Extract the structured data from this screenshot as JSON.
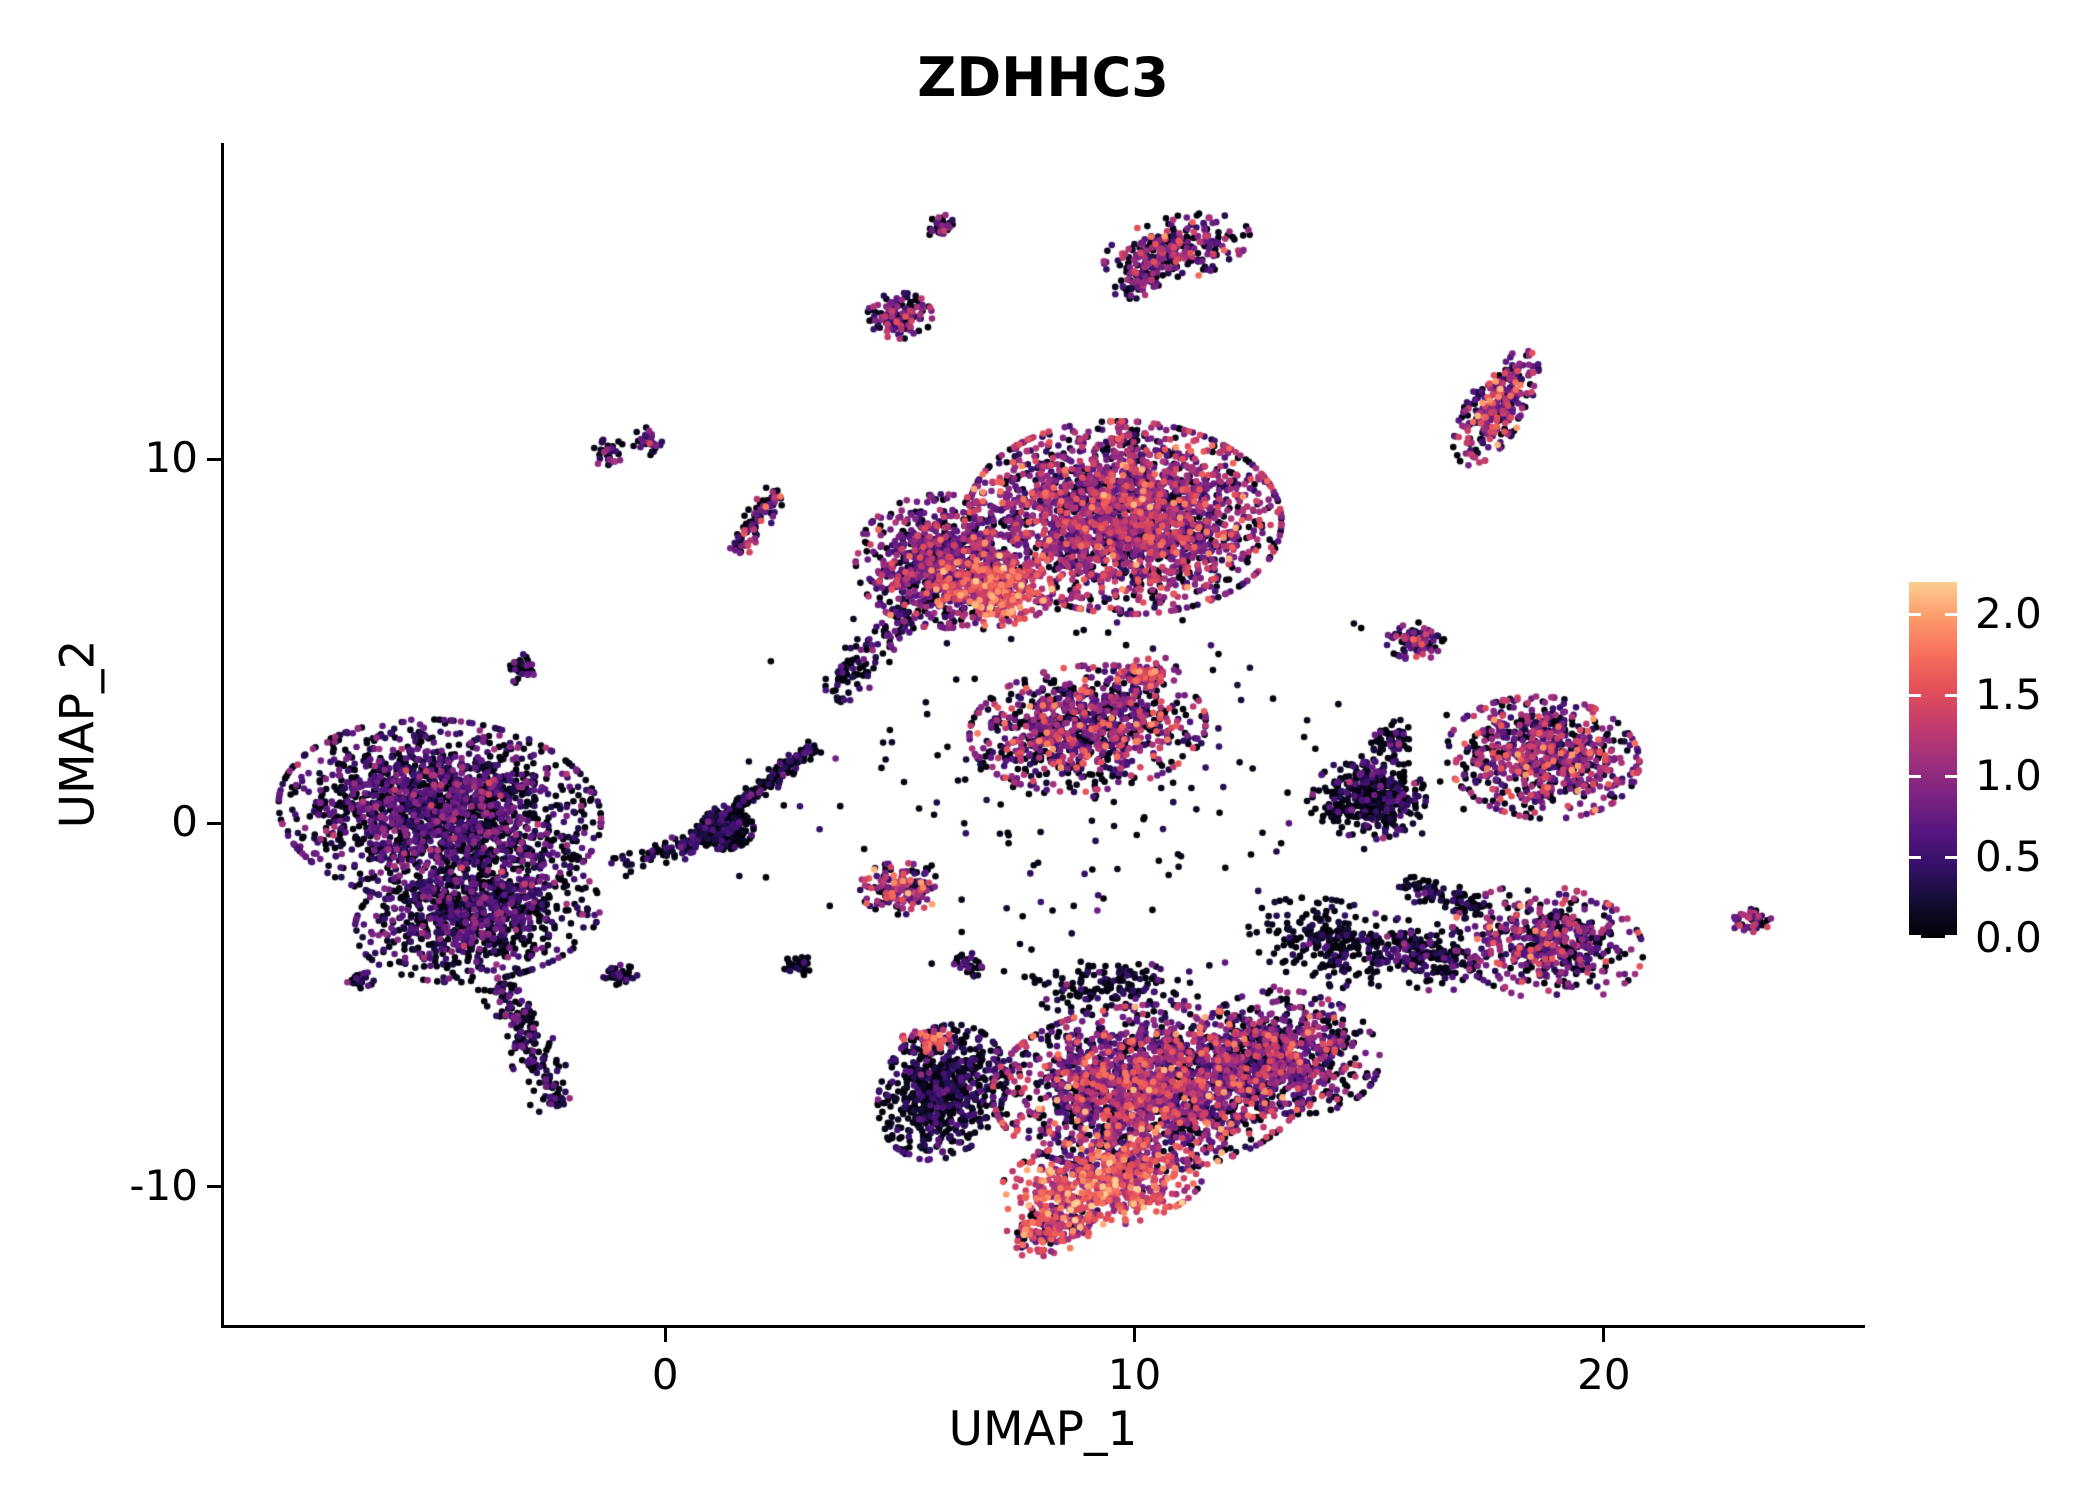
{
  "title": "ZDHHC3",
  "colors": {
    "background": "#ffffff",
    "text": "#000000",
    "axis": "#000000",
    "colorbar_tick": "#ffffff"
  },
  "chart_data": {
    "type": "scatter",
    "title": "ZDHHC3",
    "xlabel": "UMAP_1",
    "ylabel": "UMAP_2",
    "xlim": [
      -9.4,
      25.5
    ],
    "ylim": [
      -13.8,
      18.7
    ],
    "grid": false,
    "x_ticks": [
      {
        "value": 0,
        "label": "0"
      },
      {
        "value": 10,
        "label": "10"
      },
      {
        "value": 20,
        "label": "20"
      }
    ],
    "y_ticks": [
      {
        "value": -10,
        "label": "-10"
      },
      {
        "value": 0,
        "label": "0"
      },
      {
        "value": 10,
        "label": "10"
      }
    ],
    "legend": {
      "position": "right",
      "vmin": 0.0,
      "vmax": 2.2,
      "ticks": [
        {
          "value": 2.0,
          "label": "2.0"
        },
        {
          "value": 1.5,
          "label": "1.5"
        },
        {
          "value": 1.0,
          "label": "1.0"
        },
        {
          "value": 0.5,
          "label": "0.5"
        },
        {
          "value": 0.0,
          "label": "0.0"
        }
      ]
    },
    "colormap": {
      "name": "magma",
      "stops": [
        [
          0.0,
          "#000004"
        ],
        [
          0.1,
          "#120d32"
        ],
        [
          0.2,
          "#331068"
        ],
        [
          0.3,
          "#571680"
        ],
        [
          0.4,
          "#7b2382"
        ],
        [
          0.5,
          "#a0307c"
        ],
        [
          0.6,
          "#c43c6c"
        ],
        [
          0.7,
          "#e44f58"
        ],
        [
          0.8,
          "#f7705c"
        ],
        [
          0.9,
          "#fd9a6a"
        ],
        [
          1.0,
          "#fdce91"
        ]
      ]
    },
    "point_radius_px": 3.3,
    "clusters": [
      {
        "name": "left-upper",
        "cx": -4.8,
        "cy": 0.3,
        "rx": 3.0,
        "ry": 2.2,
        "rot": -8,
        "n": 2000,
        "zero_frac": 0.4,
        "mean": 0.55,
        "sd": 0.32,
        "max": 1.7
      },
      {
        "name": "left-lower",
        "cx": -4.0,
        "cy": -2.6,
        "rx": 2.3,
        "ry": 1.5,
        "rot": 12,
        "n": 900,
        "zero_frac": 0.42,
        "mean": 0.5,
        "sd": 0.3,
        "max": 1.6
      },
      {
        "name": "left-tail",
        "cx": -2.9,
        "cy": -6.1,
        "rx": 1.8,
        "ry": 0.45,
        "rot": -70,
        "n": 200,
        "zero_frac": 0.45,
        "mean": 0.45,
        "sd": 0.3,
        "max": 1.4,
        "uniform": true
      },
      {
        "name": "left-dot",
        "cx": -6.5,
        "cy": -4.3,
        "rx": 0.28,
        "ry": 0.22,
        "rot": 0,
        "n": 25,
        "zero_frac": 0.5,
        "mean": 0.4,
        "sd": 0.25,
        "max": 1.0
      },
      {
        "name": "left-bridge",
        "cx": -0.3,
        "cy": -0.9,
        "rx": 0.9,
        "ry": 0.28,
        "rot": 20,
        "n": 60,
        "zero_frac": 0.6,
        "mean": 0.3,
        "sd": 0.2,
        "max": 0.9,
        "uniform": true
      },
      {
        "name": "dot-left-low",
        "cx": -1.0,
        "cy": -4.2,
        "rx": 0.35,
        "ry": 0.28,
        "rot": 0,
        "n": 40,
        "zero_frac": 0.5,
        "mean": 0.4,
        "sd": 0.25,
        "max": 1.1
      },
      {
        "name": "islet-left-mid",
        "cx": -3.1,
        "cy": 4.25,
        "rx": 0.3,
        "ry": 0.35,
        "rot": 0,
        "n": 30,
        "zero_frac": 0.45,
        "mean": 0.5,
        "sd": 0.3,
        "max": 1.2
      },
      {
        "name": "islet-topleft-a",
        "cx": -1.2,
        "cy": 10.2,
        "rx": 0.28,
        "ry": 0.4,
        "rot": 0,
        "n": 30,
        "zero_frac": 0.35,
        "mean": 0.6,
        "sd": 0.35,
        "max": 1.5
      },
      {
        "name": "islet-topleft-b",
        "cx": -0.35,
        "cy": 10.5,
        "rx": 0.3,
        "ry": 0.33,
        "rot": 0,
        "n": 35,
        "zero_frac": 0.35,
        "mean": 0.6,
        "sd": 0.35,
        "max": 1.5
      },
      {
        "name": "streak-upper-left",
        "cx": 1.95,
        "cy": 8.3,
        "rx": 0.95,
        "ry": 0.25,
        "rot": 63,
        "n": 90,
        "zero_frac": 0.3,
        "mean": 0.7,
        "sd": 0.45,
        "max": 1.8,
        "uniform": true
      },
      {
        "name": "diag-line",
        "cx": 1.8,
        "cy": 0.7,
        "rx": 2.0,
        "ry": 0.2,
        "rot": 46,
        "n": 260,
        "zero_frac": 0.55,
        "mean": 0.35,
        "sd": 0.25,
        "max": 1.2,
        "uniform": true
      },
      {
        "name": "line-knot",
        "cx": 1.25,
        "cy": -0.15,
        "rx": 0.55,
        "ry": 0.5,
        "rot": 0,
        "n": 300,
        "zero_frac": 0.6,
        "mean": 0.3,
        "sd": 0.2,
        "max": 1.0
      },
      {
        "name": "bridge-to-top",
        "cx": 4.3,
        "cy": 4.6,
        "rx": 1.5,
        "ry": 0.45,
        "rot": 58,
        "n": 110,
        "zero_frac": 0.55,
        "mean": 0.35,
        "sd": 0.3,
        "max": 1.2,
        "uniform": true
      },
      {
        "name": "dot-below-line",
        "cx": 2.85,
        "cy": -3.9,
        "rx": 0.3,
        "ry": 0.25,
        "rot": 0,
        "n": 28,
        "zero_frac": 0.6,
        "mean": 0.3,
        "sd": 0.2,
        "max": 0.9
      },
      {
        "name": "top-main",
        "cx": 9.8,
        "cy": 8.4,
        "rx": 2.9,
        "ry": 2.3,
        "rot": -5,
        "n": 2600,
        "zero_frac": 0.18,
        "mean": 0.95,
        "sd": 0.42,
        "max": 2.1
      },
      {
        "name": "top-left-lobe",
        "cx": 5.9,
        "cy": 7.2,
        "rx": 1.6,
        "ry": 1.6,
        "rot": 0,
        "n": 900,
        "zero_frac": 0.25,
        "mean": 0.8,
        "sd": 0.4,
        "max": 1.9
      },
      {
        "name": "top-hot-pocket",
        "cx": 7.0,
        "cy": 6.4,
        "rx": 1.1,
        "ry": 0.85,
        "rot": 0,
        "n": 380,
        "zero_frac": 0.08,
        "mean": 1.45,
        "sd": 0.33,
        "max": 2.2
      },
      {
        "name": "apex-main",
        "cx": 10.9,
        "cy": 15.8,
        "rx": 1.4,
        "ry": 0.75,
        "rot": 18,
        "n": 280,
        "zero_frac": 0.3,
        "mean": 0.85,
        "sd": 0.45,
        "max": 2.0
      },
      {
        "name": "apex-tail",
        "cx": 10.1,
        "cy": 14.9,
        "rx": 0.6,
        "ry": 0.33,
        "rot": 40,
        "n": 70,
        "zero_frac": 0.35,
        "mean": 0.7,
        "sd": 0.4,
        "max": 1.6
      },
      {
        "name": "apex-dot",
        "cx": 5.9,
        "cy": 16.4,
        "rx": 0.3,
        "ry": 0.33,
        "rot": 0,
        "n": 35,
        "zero_frac": 0.3,
        "mean": 0.7,
        "sd": 0.4,
        "max": 1.6
      },
      {
        "name": "upper-round",
        "cx": 5.0,
        "cy": 13.95,
        "rx": 0.6,
        "ry": 0.55,
        "rot": 0,
        "n": 140,
        "zero_frac": 0.3,
        "mean": 0.75,
        "sd": 0.4,
        "max": 1.7
      },
      {
        "name": "mid-cluster",
        "cx": 9.0,
        "cy": 2.6,
        "rx": 2.2,
        "ry": 1.5,
        "rot": 8,
        "n": 950,
        "zero_frac": 0.28,
        "mean": 0.85,
        "sd": 0.45,
        "max": 2.0
      },
      {
        "name": "mid-hot",
        "cx": 10.3,
        "cy": 4.1,
        "rx": 0.6,
        "ry": 0.4,
        "rot": 20,
        "n": 90,
        "zero_frac": 0.1,
        "mean": 1.3,
        "sd": 0.35,
        "max": 2.0
      },
      {
        "name": "islet-hot",
        "cx": 5.0,
        "cy": -1.8,
        "rx": 0.75,
        "ry": 0.62,
        "rot": 0,
        "n": 160,
        "zero_frac": 0.18,
        "mean": 1.0,
        "sd": 0.5,
        "max": 2.1
      },
      {
        "name": "islet-dark",
        "cx": 6.5,
        "cy": -3.9,
        "rx": 0.3,
        "ry": 0.28,
        "rot": 0,
        "n": 35,
        "zero_frac": 0.5,
        "mean": 0.4,
        "sd": 0.3,
        "max": 1.2
      },
      {
        "name": "bottom-left-dark",
        "cx": 5.9,
        "cy": -7.4,
        "rx": 1.15,
        "ry": 1.65,
        "rot": -15,
        "n": 700,
        "zero_frac": 0.55,
        "mean": 0.35,
        "sd": 0.25,
        "max": 1.3
      },
      {
        "name": "bottom-left-hot",
        "cx": 5.6,
        "cy": -6.0,
        "rx": 0.5,
        "ry": 0.33,
        "rot": 0,
        "n": 70,
        "zero_frac": 0.12,
        "mean": 1.25,
        "sd": 0.4,
        "max": 2.1
      },
      {
        "name": "bottom-main",
        "cx": 10.3,
        "cy": -7.3,
        "rx": 2.9,
        "ry": 2.0,
        "rot": 5,
        "n": 2200,
        "zero_frac": 0.22,
        "mean": 0.9,
        "sd": 0.45,
        "max": 2.1
      },
      {
        "name": "bottom-hot",
        "cx": 9.3,
        "cy": -9.9,
        "rx": 1.9,
        "ry": 1.05,
        "rot": 10,
        "n": 600,
        "zero_frac": 0.08,
        "mean": 1.4,
        "sd": 0.4,
        "max": 2.2
      },
      {
        "name": "bottom-tip",
        "cx": 8.2,
        "cy": -11.2,
        "rx": 0.9,
        "ry": 0.55,
        "rot": 25,
        "n": 150,
        "zero_frac": 0.1,
        "mean": 1.2,
        "sd": 0.45,
        "max": 2.1
      },
      {
        "name": "bottom-right",
        "cx": 13.3,
        "cy": -6.3,
        "rx": 1.7,
        "ry": 1.45,
        "rot": -20,
        "n": 700,
        "zero_frac": 0.3,
        "mean": 0.75,
        "sd": 0.4,
        "max": 1.9
      },
      {
        "name": "bottom-top-sparse",
        "cx": 9.5,
        "cy": -4.5,
        "rx": 1.7,
        "ry": 0.7,
        "rot": 0,
        "n": 160,
        "zero_frac": 0.6,
        "mean": 0.3,
        "sd": 0.25,
        "max": 1.2
      },
      {
        "name": "sparse-dark-mid",
        "cx": 14.2,
        "cy": -3.3,
        "rx": 1.6,
        "ry": 1.0,
        "rot": -20,
        "n": 260,
        "zero_frac": 0.65,
        "mean": 0.28,
        "sd": 0.2,
        "max": 1.0
      },
      {
        "name": "dark-knot-right",
        "cx": 15.0,
        "cy": 0.7,
        "rx": 1.05,
        "ry": 1.0,
        "rot": 0,
        "n": 420,
        "zero_frac": 0.55,
        "mean": 0.35,
        "sd": 0.25,
        "max": 1.3
      },
      {
        "name": "dark-knot-tip",
        "cx": 15.5,
        "cy": 2.3,
        "rx": 0.4,
        "ry": 0.5,
        "rot": 0,
        "n": 60,
        "zero_frac": 0.5,
        "mean": 0.4,
        "sd": 0.25,
        "max": 1.2
      },
      {
        "name": "right-main",
        "cx": 18.7,
        "cy": 1.8,
        "rx": 1.8,
        "ry": 1.45,
        "rot": -10,
        "n": 750,
        "zero_frac": 0.22,
        "mean": 0.9,
        "sd": 0.45,
        "max": 2.0
      },
      {
        "name": "right-islet-top",
        "cx": 16.0,
        "cy": 5.0,
        "rx": 0.55,
        "ry": 0.45,
        "rot": 0,
        "n": 90,
        "zero_frac": 0.25,
        "mean": 0.85,
        "sd": 0.45,
        "max": 1.9
      },
      {
        "name": "right-upper",
        "cx": 17.7,
        "cy": 11.4,
        "rx": 1.5,
        "ry": 0.55,
        "rot": 66,
        "n": 280,
        "zero_frac": 0.2,
        "mean": 0.9,
        "sd": 0.5,
        "max": 2.1
      },
      {
        "name": "right-lower",
        "cx": 18.8,
        "cy": -3.3,
        "rx": 1.8,
        "ry": 1.35,
        "rot": -15,
        "n": 520,
        "zero_frac": 0.3,
        "mean": 0.8,
        "sd": 0.42,
        "max": 2.0
      },
      {
        "name": "right-lower-upper",
        "cx": 16.2,
        "cy": -3.6,
        "rx": 1.1,
        "ry": 0.8,
        "rot": -30,
        "n": 200,
        "zero_frac": 0.5,
        "mean": 0.45,
        "sd": 0.3,
        "max": 1.5
      },
      {
        "name": "right-lower-trail",
        "cx": 16.6,
        "cy": -2.0,
        "rx": 1.0,
        "ry": 0.3,
        "rot": -25,
        "n": 90,
        "zero_frac": 0.6,
        "mean": 0.3,
        "sd": 0.2,
        "max": 0.9,
        "uniform": true
      },
      {
        "name": "far-right-islet",
        "cx": 23.2,
        "cy": -2.7,
        "rx": 0.45,
        "ry": 0.3,
        "rot": 10,
        "n": 45,
        "zero_frac": 0.25,
        "mean": 0.85,
        "sd": 0.45,
        "max": 1.8
      },
      {
        "name": "background-sparse",
        "cx": 9.0,
        "cy": 1.0,
        "rx": 7.0,
        "ry": 5.5,
        "rot": 0,
        "n": 200,
        "zero_frac": 0.6,
        "mean": 0.3,
        "sd": 0.25,
        "max": 1.2
      }
    ]
  }
}
